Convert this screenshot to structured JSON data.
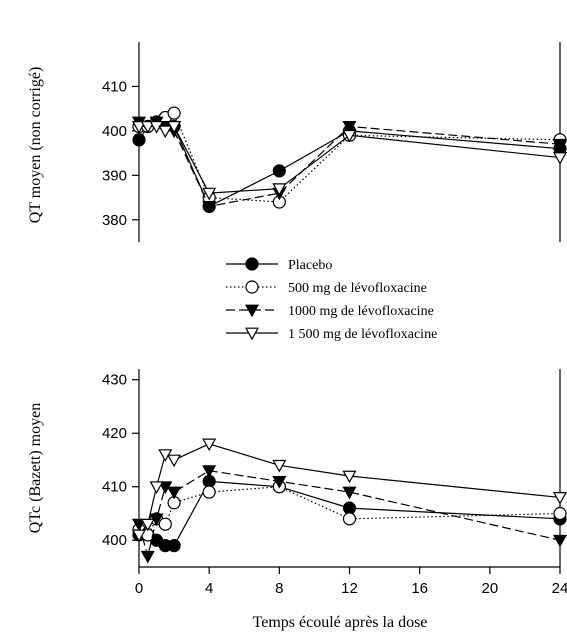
{
  "chart_data": [
    {
      "type": "line",
      "ylabel": "QT moyen (non corrigé)",
      "xlabel": "",
      "ylim": [
        375,
        420
      ],
      "y_ticks": [
        380,
        390,
        400,
        410
      ],
      "xlim": [
        0,
        24
      ],
      "x_ticks": [],
      "grid": false,
      "series": [
        {
          "name": "Placebo",
          "marker": "filled-circle",
          "line": "solid",
          "color": "#000000",
          "x": [
            0,
            0.5,
            1,
            1.5,
            2,
            4,
            8,
            12,
            24
          ],
          "y": [
            398,
            401,
            402,
            403,
            401,
            383,
            391,
            400,
            396
          ]
        },
        {
          "name": "500 mg de lévofloxacine",
          "marker": "open-circle",
          "line": "dotted",
          "color": "#000000",
          "x": [
            0,
            0.5,
            1,
            1.5,
            2,
            4,
            8,
            12,
            24
          ],
          "y": [
            401,
            401,
            402,
            403,
            404,
            385,
            384,
            399,
            398
          ]
        },
        {
          "name": "1000 mg de lévofloxacine",
          "marker": "filled-triangle-down",
          "line": "dash",
          "color": "#000000",
          "x": [
            0,
            0.5,
            1,
            1.5,
            2,
            4,
            8,
            12,
            24
          ],
          "y": [
            402,
            401,
            402,
            401,
            400,
            383,
            386,
            401,
            397
          ]
        },
        {
          "name": "1 500 mg de lévofloxacine",
          "marker": "open-triangle-down",
          "line": "solid",
          "color": "#000000",
          "x": [
            0,
            0.5,
            1,
            1.5,
            2,
            4,
            8,
            12,
            24
          ],
          "y": [
            401,
            401,
            401,
            400,
            401,
            386,
            387,
            399,
            394
          ]
        }
      ]
    },
    {
      "type": "line",
      "ylabel": "QTc (Bazett) moyen",
      "xlabel": "Temps écoulé après la dose",
      "ylim": [
        395,
        432
      ],
      "y_ticks": [
        400,
        410,
        420,
        430
      ],
      "xlim": [
        0,
        24
      ],
      "x_ticks": [
        0,
        4,
        8,
        12,
        16,
        20,
        24
      ],
      "grid": false,
      "series": [
        {
          "name": "Placebo",
          "marker": "filled-circle",
          "line": "solid",
          "color": "#000000",
          "x": [
            0,
            0.5,
            1,
            1.5,
            2,
            4,
            8,
            12,
            24
          ],
          "y": [
            401,
            401,
            400,
            399,
            399,
            411,
            410,
            406,
            404
          ]
        },
        {
          "name": "500 mg de lévofloxacine",
          "marker": "open-circle",
          "line": "dotted",
          "color": "#000000",
          "x": [
            0,
            0.5,
            1,
            1.5,
            2,
            4,
            8,
            12,
            24
          ],
          "y": [
            402,
            401,
            404,
            403,
            407,
            409,
            410,
            404,
            405
          ]
        },
        {
          "name": "1000 mg de lévofloxacine",
          "marker": "filled-triangle-down",
          "line": "dash",
          "color": "#000000",
          "x": [
            0,
            0.5,
            1,
            1.5,
            2,
            4,
            8,
            12,
            24
          ],
          "y": [
            403,
            397,
            404,
            410,
            409,
            413,
            411,
            409,
            400
          ]
        },
        {
          "name": "1 500 mg de lévofloxacine",
          "marker": "open-triangle-down",
          "line": "solid",
          "color": "#000000",
          "x": [
            0,
            0.5,
            1,
            1.5,
            2,
            4,
            8,
            12,
            24
          ],
          "y": [
            401,
            403,
            410,
            416,
            415,
            418,
            414,
            412,
            408
          ]
        }
      ]
    }
  ],
  "legend": {
    "placement": "between-panels",
    "items": [
      {
        "label": "Placebo",
        "marker": "filled-circle",
        "line": "solid"
      },
      {
        "label": "500 mg de lévofloxacine",
        "marker": "open-circle",
        "line": "dotted"
      },
      {
        "label": "1000 mg de lévofloxacine",
        "marker": "filled-triangle-down",
        "line": "dash"
      },
      {
        "label": "1 500 mg de lévofloxacine",
        "marker": "open-triangle-down",
        "line": "solid"
      }
    ]
  }
}
